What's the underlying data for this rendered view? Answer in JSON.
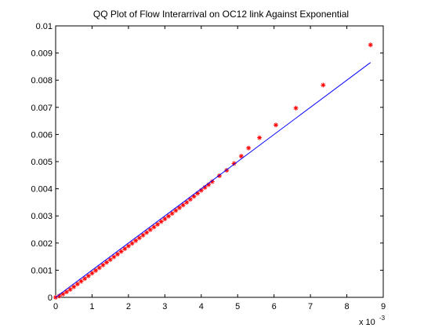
{
  "chart_data": {
    "type": "scatter",
    "title": "QQ Plot of Flow Interarrival on OC12 link Against Exponential",
    "xlabel": "",
    "ylabel": "",
    "xlim": [
      0,
      0.009
    ],
    "ylim": [
      0,
      0.01
    ],
    "x_ticks": [
      0,
      0.001,
      0.002,
      0.003,
      0.004,
      0.005,
      0.006,
      0.007,
      0.008,
      0.009
    ],
    "x_tick_labels": [
      "0",
      "1",
      "2",
      "3",
      "4",
      "5",
      "6",
      "7",
      "8",
      "9"
    ],
    "x_exponent_base": "x 10",
    "x_exponent_power": "-3",
    "y_ticks": [
      0,
      0.001,
      0.002,
      0.003,
      0.004,
      0.005,
      0.006,
      0.007,
      0.008,
      0.009,
      0.01
    ],
    "y_tick_labels": [
      "0",
      "0.001",
      "0.002",
      "0.003",
      "0.004",
      "0.005",
      "0.006",
      "0.007",
      "0.008",
      "0.009",
      "0.01"
    ],
    "grid": false,
    "legend": "none",
    "series": [
      {
        "marker": "asterisk",
        "color": "#ff0000",
        "points": [
          [
            0.0,
            0.0
          ],
          [
            0.0001,
            5e-05
          ],
          [
            0.0002,
            0.00012
          ],
          [
            0.0003,
            0.0002
          ],
          [
            0.0004,
            0.00029
          ],
          [
            0.0005,
            0.00039
          ],
          [
            0.0006,
            0.00049
          ],
          [
            0.0007,
            0.00059
          ],
          [
            0.0008,
            0.00069
          ],
          [
            0.0009,
            0.00079
          ],
          [
            0.001,
            0.00089
          ],
          [
            0.0011,
            0.00099
          ],
          [
            0.0012,
            0.00109
          ],
          [
            0.0013,
            0.00119
          ],
          [
            0.0014,
            0.00129
          ],
          [
            0.0015,
            0.00139
          ],
          [
            0.0016,
            0.00149
          ],
          [
            0.0017,
            0.00159
          ],
          [
            0.0018,
            0.00169
          ],
          [
            0.0019,
            0.00179
          ],
          [
            0.002,
            0.00189
          ],
          [
            0.0021,
            0.00199
          ],
          [
            0.0022,
            0.00209
          ],
          [
            0.0023,
            0.00219
          ],
          [
            0.0024,
            0.00229
          ],
          [
            0.0025,
            0.00239
          ],
          [
            0.0026,
            0.00249
          ],
          [
            0.0027,
            0.00259
          ],
          [
            0.0028,
            0.00269
          ],
          [
            0.0029,
            0.00279
          ],
          [
            0.003,
            0.00289
          ],
          [
            0.0031,
            0.00299
          ],
          [
            0.0032,
            0.00309
          ],
          [
            0.0033,
            0.0032
          ],
          [
            0.0034,
            0.0033
          ],
          [
            0.0035,
            0.0034
          ],
          [
            0.0036,
            0.0035
          ],
          [
            0.0037,
            0.00361
          ],
          [
            0.0038,
            0.00372
          ],
          [
            0.0039,
            0.00383
          ],
          [
            0.004,
            0.00394
          ],
          [
            0.0041,
            0.00405
          ],
          [
            0.0042,
            0.00415
          ],
          [
            0.0043,
            0.00426
          ],
          [
            0.0045,
            0.00448
          ],
          [
            0.0047,
            0.00468
          ],
          [
            0.0049,
            0.00493
          ],
          [
            0.0051,
            0.0052
          ],
          [
            0.0053,
            0.0055
          ],
          [
            0.0056,
            0.00588
          ],
          [
            0.00605,
            0.00635
          ],
          [
            0.0066,
            0.00697
          ],
          [
            0.00735,
            0.00782
          ],
          [
            0.00865,
            0.0093
          ]
        ]
      },
      {
        "marker": "line",
        "color": "#0000ff",
        "points": [
          [
            0,
            0
          ],
          [
            0.00865,
            0.00865
          ]
        ]
      }
    ]
  }
}
